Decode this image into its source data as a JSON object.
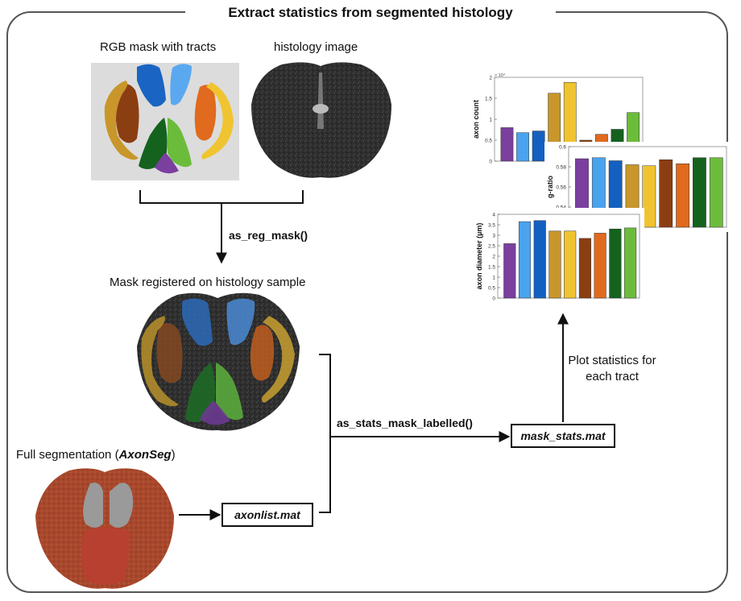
{
  "title": "Extract statistics from segmented histology",
  "captions": {
    "rgb_mask": "RGB mask with tracts",
    "histology": "histology image",
    "registered": "Mask registered on histology sample",
    "full_seg_prefix": "Full segmentation (",
    "full_seg_name": "AxonSeg",
    "full_seg_suffix": ")",
    "plot_line1": "Plot statistics for",
    "plot_line2": "each tract"
  },
  "functions": {
    "reg_mask": "as_reg_mask()",
    "stats_mask": "as_stats_mask_labelled()"
  },
  "files": {
    "axonlist": "axonlist.mat",
    "mask_stats": "mask_stats.mat"
  },
  "colors": {
    "tracts": [
      "#7b3fa0",
      "#4aa3ee",
      "#1460c0",
      "#c8962a",
      "#f0c430",
      "#8b3e12",
      "#e06a1e",
      "#14621e",
      "#6cbc3c"
    ]
  },
  "chart_data": [
    {
      "type": "bar",
      "ylabel": "axon count",
      "multiplier": "× 10⁴",
      "yticks": [
        "0",
        "0.5",
        "1",
        "1.5",
        "2"
      ],
      "ylim": [
        0,
        2
      ],
      "values": [
        0.8,
        0.68,
        0.72,
        1.62,
        1.88,
        0.5,
        0.64,
        0.76,
        1.16
      ]
    },
    {
      "type": "bar",
      "ylabel": "g-ratio",
      "yticks": [
        "0.54",
        "0.56",
        "0.58",
        "0.6"
      ],
      "ylim": [
        0.52,
        0.6
      ],
      "values": [
        0.588,
        0.589,
        0.586,
        0.582,
        0.581,
        0.587,
        0.583,
        0.589,
        0.589
      ]
    },
    {
      "type": "bar",
      "ylabel": "axon diameter (µm)",
      "yticks": [
        "0",
        "0.5",
        "1",
        "1.5",
        "2",
        "2.5",
        "3",
        "3.5",
        "4"
      ],
      "ylim": [
        0,
        4
      ],
      "values": [
        2.6,
        3.65,
        3.7,
        3.2,
        3.2,
        2.85,
        3.1,
        3.3,
        3.35
      ]
    }
  ]
}
